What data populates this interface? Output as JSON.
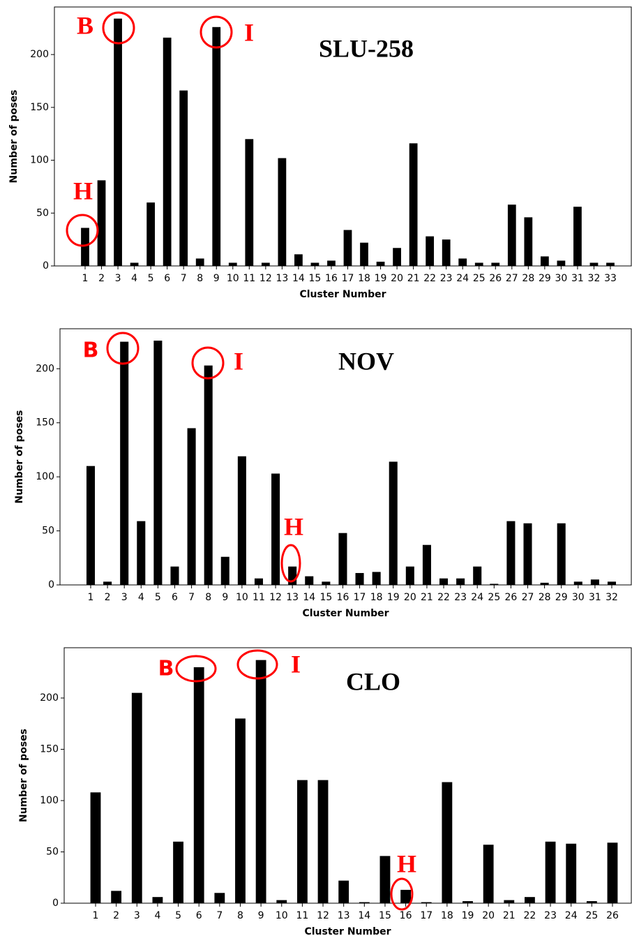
{
  "chart_data": [
    {
      "type": "bar",
      "title": "SLU-258",
      "xlabel": "Cluster Number",
      "ylabel": "Number of poses",
      "color": "#000000",
      "categories": [
        "1",
        "2",
        "3",
        "4",
        "5",
        "6",
        "7",
        "8",
        "9",
        "10",
        "11",
        "12",
        "13",
        "14",
        "15",
        "16",
        "17",
        "18",
        "19",
        "20",
        "21",
        "22",
        "23",
        "24",
        "25",
        "26",
        "27",
        "28",
        "29",
        "30",
        "31",
        "32",
        "33"
      ],
      "values": [
        36,
        81,
        234,
        3,
        60,
        216,
        166,
        7,
        226,
        3,
        120,
        3,
        102,
        11,
        3,
        5,
        34,
        22,
        4,
        17,
        116,
        28,
        25,
        7,
        3,
        3,
        58,
        46,
        9,
        5,
        56,
        3,
        3
      ],
      "ylim": [
        0,
        245
      ],
      "yticks": [
        0,
        50,
        100,
        150,
        200
      ],
      "annotations": [
        "B",
        "I",
        "H"
      ]
    },
    {
      "type": "bar",
      "title": "NOV",
      "xlabel": "Cluster Number",
      "ylabel": "Number of poses",
      "color": "#000000",
      "categories": [
        "1",
        "2",
        "3",
        "4",
        "5",
        "6",
        "7",
        "8",
        "9",
        "10",
        "11",
        "12",
        "13",
        "14",
        "15",
        "16",
        "17",
        "18",
        "19",
        "20",
        "21",
        "22",
        "23",
        "24",
        "25",
        "26",
        "27",
        "28",
        "29",
        "30",
        "31",
        "32"
      ],
      "values": [
        110,
        3,
        225,
        59,
        226,
        17,
        145,
        203,
        26,
        119,
        6,
        103,
        17,
        8,
        3,
        48,
        11,
        12,
        114,
        17,
        37,
        6,
        6,
        17,
        1,
        59,
        57,
        2,
        57,
        3,
        5,
        3
      ],
      "ylim": [
        0,
        237
      ],
      "yticks": [
        0,
        50,
        100,
        150,
        200
      ],
      "annotations": [
        "B",
        "I",
        "H"
      ]
    },
    {
      "type": "bar",
      "title": "CLO",
      "xlabel": "Cluster Number",
      "ylabel": "Number of poses",
      "color": "#000000",
      "categories": [
        "1",
        "2",
        "3",
        "4",
        "5",
        "6",
        "7",
        "8",
        "9",
        "10",
        "11",
        "12",
        "13",
        "14",
        "15",
        "16",
        "17",
        "18",
        "19",
        "20",
        "21",
        "22",
        "23",
        "24",
        "25",
        "26"
      ],
      "values": [
        108,
        12,
        205,
        6,
        60,
        230,
        10,
        180,
        237,
        3,
        120,
        120,
        22,
        1,
        46,
        13,
        1,
        118,
        2,
        57,
        3,
        6,
        60,
        58,
        2,
        59
      ],
      "ylim": [
        0,
        249
      ],
      "yticks": [
        0,
        50,
        100,
        150,
        200
      ],
      "annotations": [
        "B",
        "I",
        "H"
      ]
    }
  ]
}
